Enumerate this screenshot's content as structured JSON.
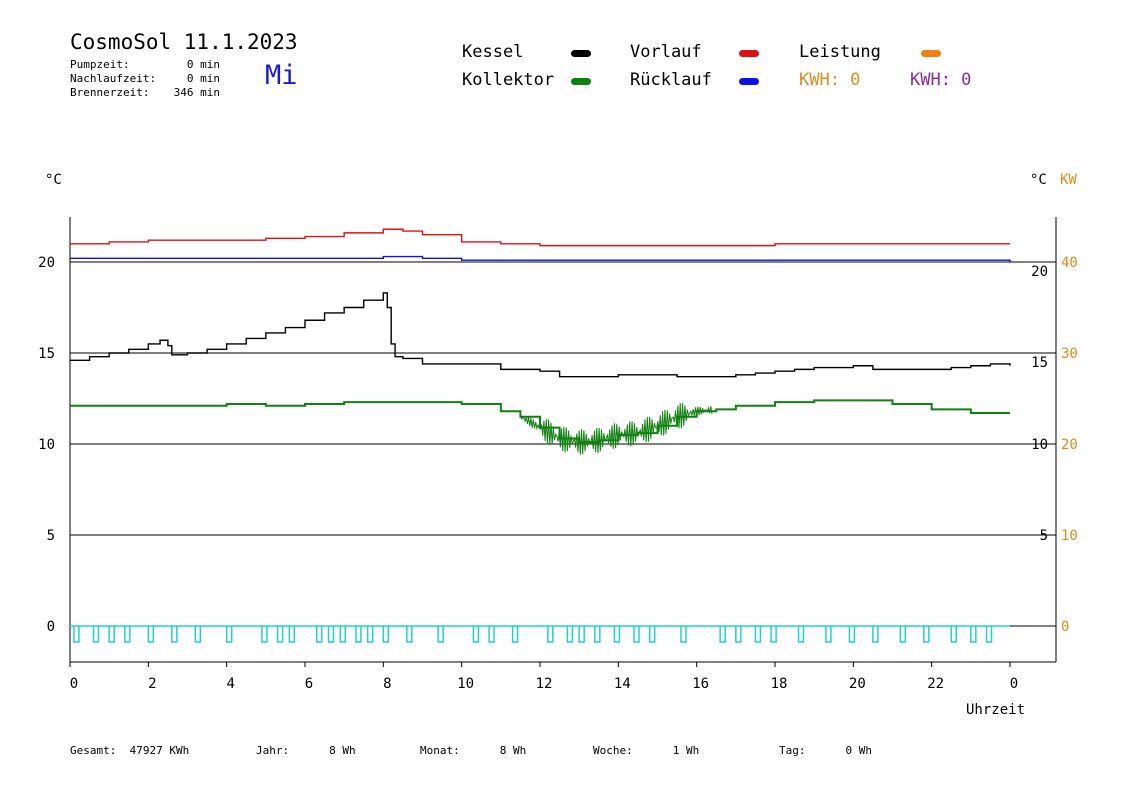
{
  "header": {
    "title": "CosmoSol 11.1.2023",
    "weekday": "Mi",
    "stats": [
      {
        "label": "Pumpzeit:",
        "value": "0 min"
      },
      {
        "label": "Nachlaufzeit:",
        "value": "0 min"
      },
      {
        "label": "Brennerzeit:",
        "value": "346 min"
      }
    ]
  },
  "legend": {
    "kessel": {
      "label": "Kessel",
      "color": "#000000"
    },
    "vorlauf": {
      "label": "Vorlauf",
      "color": "#e01010"
    },
    "leistung": {
      "label": "Leistung",
      "color": "#f08010"
    },
    "kollektor": {
      "label": "Kollektor",
      "color": "#108010"
    },
    "ruecklauf": {
      "label": "Rücklauf",
      "color": "#1010e0"
    },
    "kwh1": "KWH: 0",
    "kwh2": "KWH: 0"
  },
  "colors": {
    "kwh1": "#e08a1a",
    "kwh2": "#8a2a9a",
    "pump": "#20d0d0",
    "kw": "#e08a1a"
  },
  "axes": {
    "left_unit": "°C",
    "right_unit": "°C",
    "right_unit2": "KW",
    "xlabel": "Uhrzeit"
  },
  "footer": [
    {
      "label": "Gesamt:",
      "value": "47927 KWh"
    },
    {
      "label": "Jahr:",
      "value": "8 Wh"
    },
    {
      "label": "Monat:",
      "value": "8 Wh"
    },
    {
      "label": "Woche:",
      "value": "1 Wh"
    },
    {
      "label": "Tag:",
      "value": "0 Wh"
    }
  ],
  "chart_data": {
    "type": "line",
    "x_ticks": [
      "0",
      "2",
      "4",
      "6",
      "8",
      "10",
      "12",
      "14",
      "16",
      "18",
      "20",
      "22",
      "0"
    ],
    "xlim": [
      0,
      24
    ],
    "ylim_left": [
      -2,
      22.5
    ],
    "y_ticks_left": [
      "0",
      "5",
      "10",
      "15",
      "20"
    ],
    "y_ticks_left_values": [
      0,
      5,
      10,
      15,
      20
    ],
    "y_ticks_right_inner": [
      "5",
      "10",
      "15",
      "20"
    ],
    "y_ticks_right_inner_values": [
      5,
      10,
      14.5,
      19.5
    ],
    "y_ticks_right_kw": [
      "0",
      "10",
      "20",
      "30",
      "40"
    ],
    "y_ticks_right_kw_values": [
      0,
      5,
      10,
      15,
      20
    ],
    "gridlines": [
      0,
      5,
      10,
      15,
      20
    ],
    "series": [
      {
        "key": "vorlauf",
        "color": "#e01010",
        "x": [
          0,
          1,
          2,
          3,
          4,
          5,
          6,
          7,
          8,
          8.5,
          9,
          10,
          11,
          12,
          13,
          14,
          15,
          16,
          17,
          18,
          19,
          20,
          21,
          22,
          23,
          24
        ],
        "y": [
          21,
          21.1,
          21.2,
          21.2,
          21.2,
          21.3,
          21.4,
          21.6,
          21.8,
          21.7,
          21.5,
          21.1,
          21.0,
          20.9,
          20.9,
          20.9,
          20.9,
          20.9,
          20.9,
          21.0,
          21.0,
          21.0,
          21.0,
          21.0,
          21.0,
          21.0
        ]
      },
      {
        "key": "ruecklauf",
        "color": "#1010e0",
        "x": [
          0,
          2,
          4,
          6,
          7,
          8,
          8.5,
          9,
          10,
          12,
          14,
          16,
          18,
          20,
          22,
          24
        ],
        "y": [
          20.2,
          20.2,
          20.2,
          20.2,
          20.2,
          20.3,
          20.3,
          20.2,
          20.1,
          20.1,
          20.1,
          20.1,
          20.1,
          20.1,
          20.1,
          20.0
        ]
      },
      {
        "key": "kessel",
        "color": "#000000",
        "x": [
          0,
          0.5,
          1,
          1.5,
          2,
          2.3,
          2.5,
          2.6,
          3,
          3.5,
          4,
          4.5,
          5,
          5.5,
          6,
          6.5,
          7,
          7.5,
          8,
          8.1,
          8.2,
          8.3,
          8.5,
          8.7,
          9,
          10,
          11,
          12,
          12.5,
          13,
          14,
          15,
          15.5,
          16,
          16.5,
          17,
          17.5,
          18,
          18.5,
          19,
          19.5,
          20,
          20.5,
          21,
          21.5,
          22,
          22.5,
          23,
          23.5,
          24
        ],
        "y": [
          14.6,
          14.8,
          15.0,
          15.2,
          15.5,
          15.7,
          15.4,
          14.9,
          15.0,
          15.2,
          15.5,
          15.8,
          16.1,
          16.4,
          16.8,
          17.2,
          17.5,
          17.9,
          18.3,
          17.5,
          15.5,
          14.8,
          14.7,
          14.7,
          14.4,
          14.4,
          14.1,
          14.0,
          13.7,
          13.7,
          13.8,
          13.8,
          13.7,
          13.7,
          13.7,
          13.8,
          13.9,
          14.0,
          14.1,
          14.2,
          14.2,
          14.3,
          14.1,
          14.1,
          14.1,
          14.1,
          14.2,
          14.3,
          14.4,
          14.3
        ]
      },
      {
        "key": "kollektor",
        "color": "#108010",
        "x": [
          0,
          1,
          2,
          3,
          4,
          5,
          6,
          7,
          8,
          9,
          10,
          11,
          11.5,
          12,
          12.5,
          13,
          13.5,
          14,
          14.5,
          15,
          15.5,
          16,
          16.5,
          17,
          18,
          19,
          20,
          21,
          22,
          23,
          24
        ],
        "y": [
          12.1,
          12.1,
          12.1,
          12.1,
          12.2,
          12.1,
          12.2,
          12.3,
          12.3,
          12.3,
          12.2,
          11.8,
          11.5,
          10.9,
          10.3,
          10.1,
          10.2,
          10.5,
          10.6,
          11.0,
          11.5,
          11.8,
          11.9,
          12.1,
          12.3,
          12.4,
          12.4,
          12.2,
          11.9,
          11.7,
          11.7
        ]
      }
    ],
    "pump_pulses_hours": [
      0.1,
      0.6,
      1.0,
      1.4,
      2.0,
      2.6,
      3.2,
      4.0,
      4.9,
      5.3,
      5.6,
      6.3,
      6.6,
      6.9,
      7.3,
      7.6,
      8.0,
      8.6,
      9.4,
      10.3,
      10.7,
      11.3,
      12.2,
      12.7,
      13.0,
      13.4,
      13.9,
      14.4,
      14.8,
      15.6,
      16.6,
      17.0,
      17.5,
      17.9,
      18.6,
      19.3,
      19.9,
      20.5,
      21.2,
      21.8,
      22.5,
      23.0,
      23.4
    ],
    "kessel_end_value": "0"
  }
}
